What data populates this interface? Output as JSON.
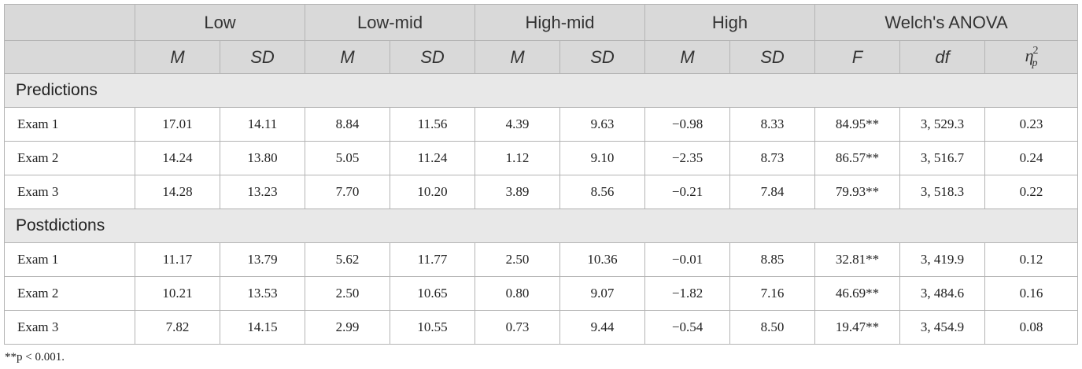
{
  "header": {
    "groups": [
      "Low",
      "Low-mid",
      "High-mid",
      "High",
      "Welch's ANOVA"
    ],
    "stats": [
      "M",
      "SD",
      "M",
      "SD",
      "M",
      "SD",
      "M",
      "SD",
      "F",
      "df"
    ],
    "eta_symbol": "η",
    "eta_sup": "2",
    "eta_sub": "p"
  },
  "sections": [
    {
      "title": "Predictions",
      "rows": [
        {
          "label": "Exam 1",
          "values": [
            "17.01",
            "14.11",
            "8.84",
            "11.56",
            "4.39",
            "9.63",
            "−0.98",
            "8.33",
            "84.95**",
            "3, 529.3",
            "0.23"
          ]
        },
        {
          "label": "Exam 2",
          "values": [
            "14.24",
            "13.80",
            "5.05",
            "11.24",
            "1.12",
            "9.10",
            "−2.35",
            "8.73",
            "86.57**",
            "3, 516.7",
            "0.24"
          ]
        },
        {
          "label": "Exam 3",
          "values": [
            "14.28",
            "13.23",
            "7.70",
            "10.20",
            "3.89",
            "8.56",
            "−0.21",
            "7.84",
            "79.93**",
            "3, 518.3",
            "0.22"
          ]
        }
      ]
    },
    {
      "title": "Postdictions",
      "rows": [
        {
          "label": "Exam 1",
          "values": [
            "11.17",
            "13.79",
            "5.62",
            "11.77",
            "2.50",
            "10.36",
            "−0.01",
            "8.85",
            "32.81**",
            "3, 419.9",
            "0.12"
          ]
        },
        {
          "label": "Exam 2",
          "values": [
            "10.21",
            "13.53",
            "2.50",
            "10.65",
            "0.80",
            "9.07",
            "−1.82",
            "7.16",
            "46.69**",
            "3, 484.6",
            "0.16"
          ]
        },
        {
          "label": "Exam 3",
          "values": [
            "7.82",
            "14.15",
            "2.99",
            "10.55",
            "0.73",
            "9.44",
            "−0.54",
            "8.50",
            "19.47**",
            "3, 454.9",
            "0.08"
          ]
        }
      ]
    }
  ],
  "footnote": "**p < 0.001."
}
